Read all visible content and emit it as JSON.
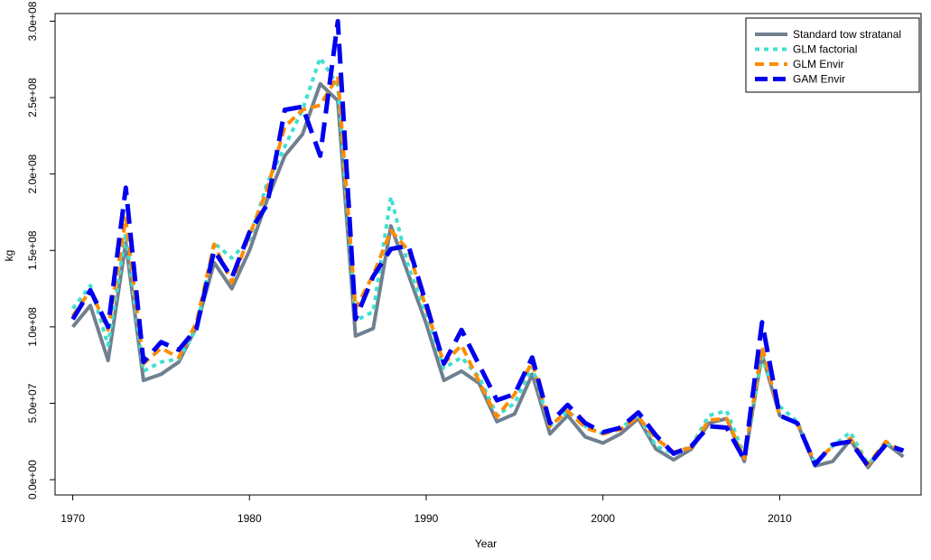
{
  "chart_data": {
    "type": "line",
    "title": "",
    "xlabel": "Year",
    "ylabel": "kg",
    "xlim": [
      1969,
      2018
    ],
    "ylim": [
      -10000000,
      305000000
    ],
    "x_ticks": [
      1970,
      1980,
      1990,
      2000,
      2010
    ],
    "x_tick_labels": [
      "1970",
      "1980",
      "1990",
      "2000",
      "2010"
    ],
    "y_ticks": [
      0,
      50000000,
      100000000,
      150000000,
      200000000,
      250000000,
      300000000
    ],
    "y_tick_labels": [
      "0.0e+00",
      "5.0e+07",
      "1.0e+08",
      "1.5e+08",
      "2.0e+08",
      "2.5e+08",
      "3.0e+08"
    ],
    "grid": false,
    "legend_position": "top-right",
    "x": [
      1970,
      1971,
      1972,
      1973,
      1974,
      1975,
      1976,
      1977,
      1978,
      1979,
      1980,
      1981,
      1982,
      1983,
      1984,
      1985,
      1986,
      1987,
      1988,
      1989,
      1990,
      1991,
      1992,
      1993,
      1994,
      1995,
      1996,
      1997,
      1998,
      1999,
      2000,
      2001,
      2002,
      2003,
      2004,
      2005,
      2006,
      2007,
      2008,
      2009,
      2010,
      2011,
      2012,
      2013,
      2014,
      2015,
      2016,
      2017
    ],
    "series": [
      {
        "name": "Standard tow stratanal",
        "color": "#708090",
        "dash": "solid",
        "width": 4,
        "values": [
          100000000,
          114000000,
          78000000,
          155000000,
          65000000,
          69000000,
          77000000,
          100000000,
          142000000,
          125000000,
          150000000,
          183000000,
          212000000,
          226000000,
          259000000,
          248000000,
          94000000,
          99000000,
          166000000,
          134000000,
          102000000,
          65000000,
          71000000,
          63000000,
          38000000,
          43000000,
          69000000,
          30000000,
          42000000,
          28000000,
          24000000,
          30000000,
          40000000,
          20000000,
          13000000,
          20000000,
          37000000,
          40000000,
          12000000,
          82000000,
          42000000,
          37000000,
          9000000,
          12000000,
          26000000,
          8000000,
          24000000,
          15000000
        ]
      },
      {
        "name": "GLM factorial",
        "color": "#40e0d0",
        "dash": "dotted",
        "width": 4,
        "values": [
          112000000,
          127000000,
          88000000,
          161000000,
          71000000,
          77000000,
          79000000,
          99000000,
          155000000,
          145000000,
          157000000,
          194000000,
          218000000,
          242000000,
          276000000,
          258000000,
          104000000,
          110000000,
          185000000,
          139000000,
          108000000,
          73000000,
          80000000,
          67000000,
          42000000,
          50000000,
          74000000,
          35000000,
          45000000,
          35000000,
          30000000,
          34000000,
          42000000,
          22000000,
          17000000,
          22000000,
          42000000,
          45000000,
          16000000,
          80000000,
          48000000,
          38000000,
          11000000,
          22000000,
          31000000,
          10000000,
          24000000,
          19000000
        ]
      },
      {
        "name": "GLM Envir",
        "color": "#ff8c00",
        "dash": "dashed",
        "width": 4,
        "values": [
          107000000,
          124000000,
          98000000,
          171000000,
          76000000,
          86000000,
          80000000,
          103000000,
          154000000,
          129000000,
          160000000,
          190000000,
          231000000,
          242000000,
          245000000,
          264000000,
          112000000,
          134000000,
          163000000,
          150000000,
          112000000,
          76000000,
          88000000,
          64000000,
          41000000,
          56000000,
          77000000,
          35000000,
          45000000,
          34000000,
          30000000,
          33000000,
          41000000,
          27000000,
          18000000,
          21000000,
          39000000,
          40000000,
          14000000,
          87000000,
          42000000,
          37000000,
          11000000,
          22000000,
          27000000,
          10000000,
          25000000,
          18000000
        ]
      },
      {
        "name": "GAM Envir",
        "color": "#0000ee",
        "dash": "longdash",
        "width": 5,
        "values": [
          105000000,
          124000000,
          100000000,
          191000000,
          77000000,
          90000000,
          85000000,
          99000000,
          150000000,
          132000000,
          162000000,
          180000000,
          242000000,
          244000000,
          212000000,
          300000000,
          105000000,
          133000000,
          151000000,
          153000000,
          115000000,
          76000000,
          98000000,
          75000000,
          52000000,
          56000000,
          80000000,
          37000000,
          49000000,
          37000000,
          31000000,
          34000000,
          44000000,
          29000000,
          17000000,
          22000000,
          35000000,
          34000000,
          13000000,
          103000000,
          42000000,
          37000000,
          10000000,
          23000000,
          25000000,
          9000000,
          23000000,
          19000000
        ]
      }
    ]
  }
}
